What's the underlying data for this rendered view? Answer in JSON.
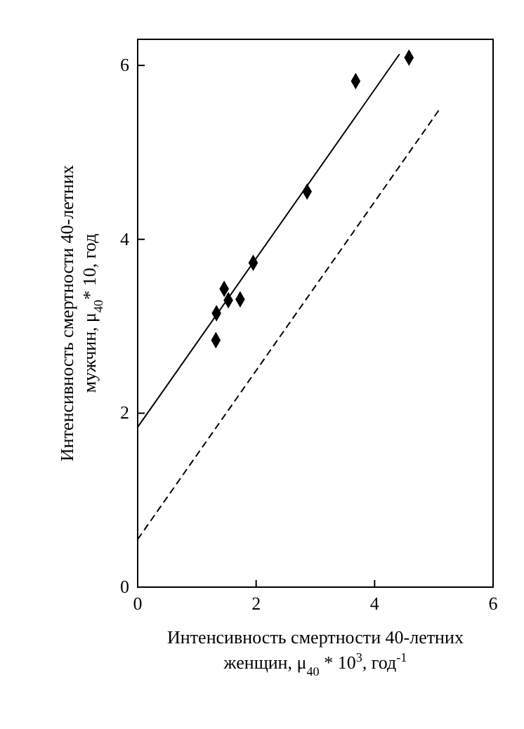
{
  "chart_data": {
    "type": "scatter",
    "xlabel": "Интенсивность смертности 40-летних женщин, μ$_{40}$ * 10$^{3}$, год$^{-1}$",
    "ylabel": "Интенсивность смертности 40-летних мужчин, μ$_{40}$* 10, год",
    "xlim": [
      0,
      6
    ],
    "xticks": [
      0,
      2,
      4,
      6
    ],
    "ylim": [
      0,
      6.3
    ],
    "yticks": [
      0,
      2,
      4,
      6
    ],
    "grid": false,
    "series": [
      {
        "color": "#000000",
        "marker": "diamond",
        "x": [
          1.32,
          1.33,
          1.46,
          1.53,
          1.73,
          1.95,
          2.86,
          3.68,
          4.58
        ],
        "values": [
          2.84,
          3.15,
          3.43,
          3.3,
          3.31,
          3.73,
          4.55,
          5.82,
          6.09
        ]
      },
      {
        "type": "line",
        "color": "#000000",
        "line_style": "solid",
        "x": [
          0,
          4.42
        ],
        "values": [
          1.84,
          6.13
        ]
      },
      {
        "type": "line",
        "color": "#000000",
        "line_style": "dashed",
        "x": [
          0,
          5.1
        ],
        "values": [
          0.55,
          5.5
        ]
      }
    ]
  }
}
